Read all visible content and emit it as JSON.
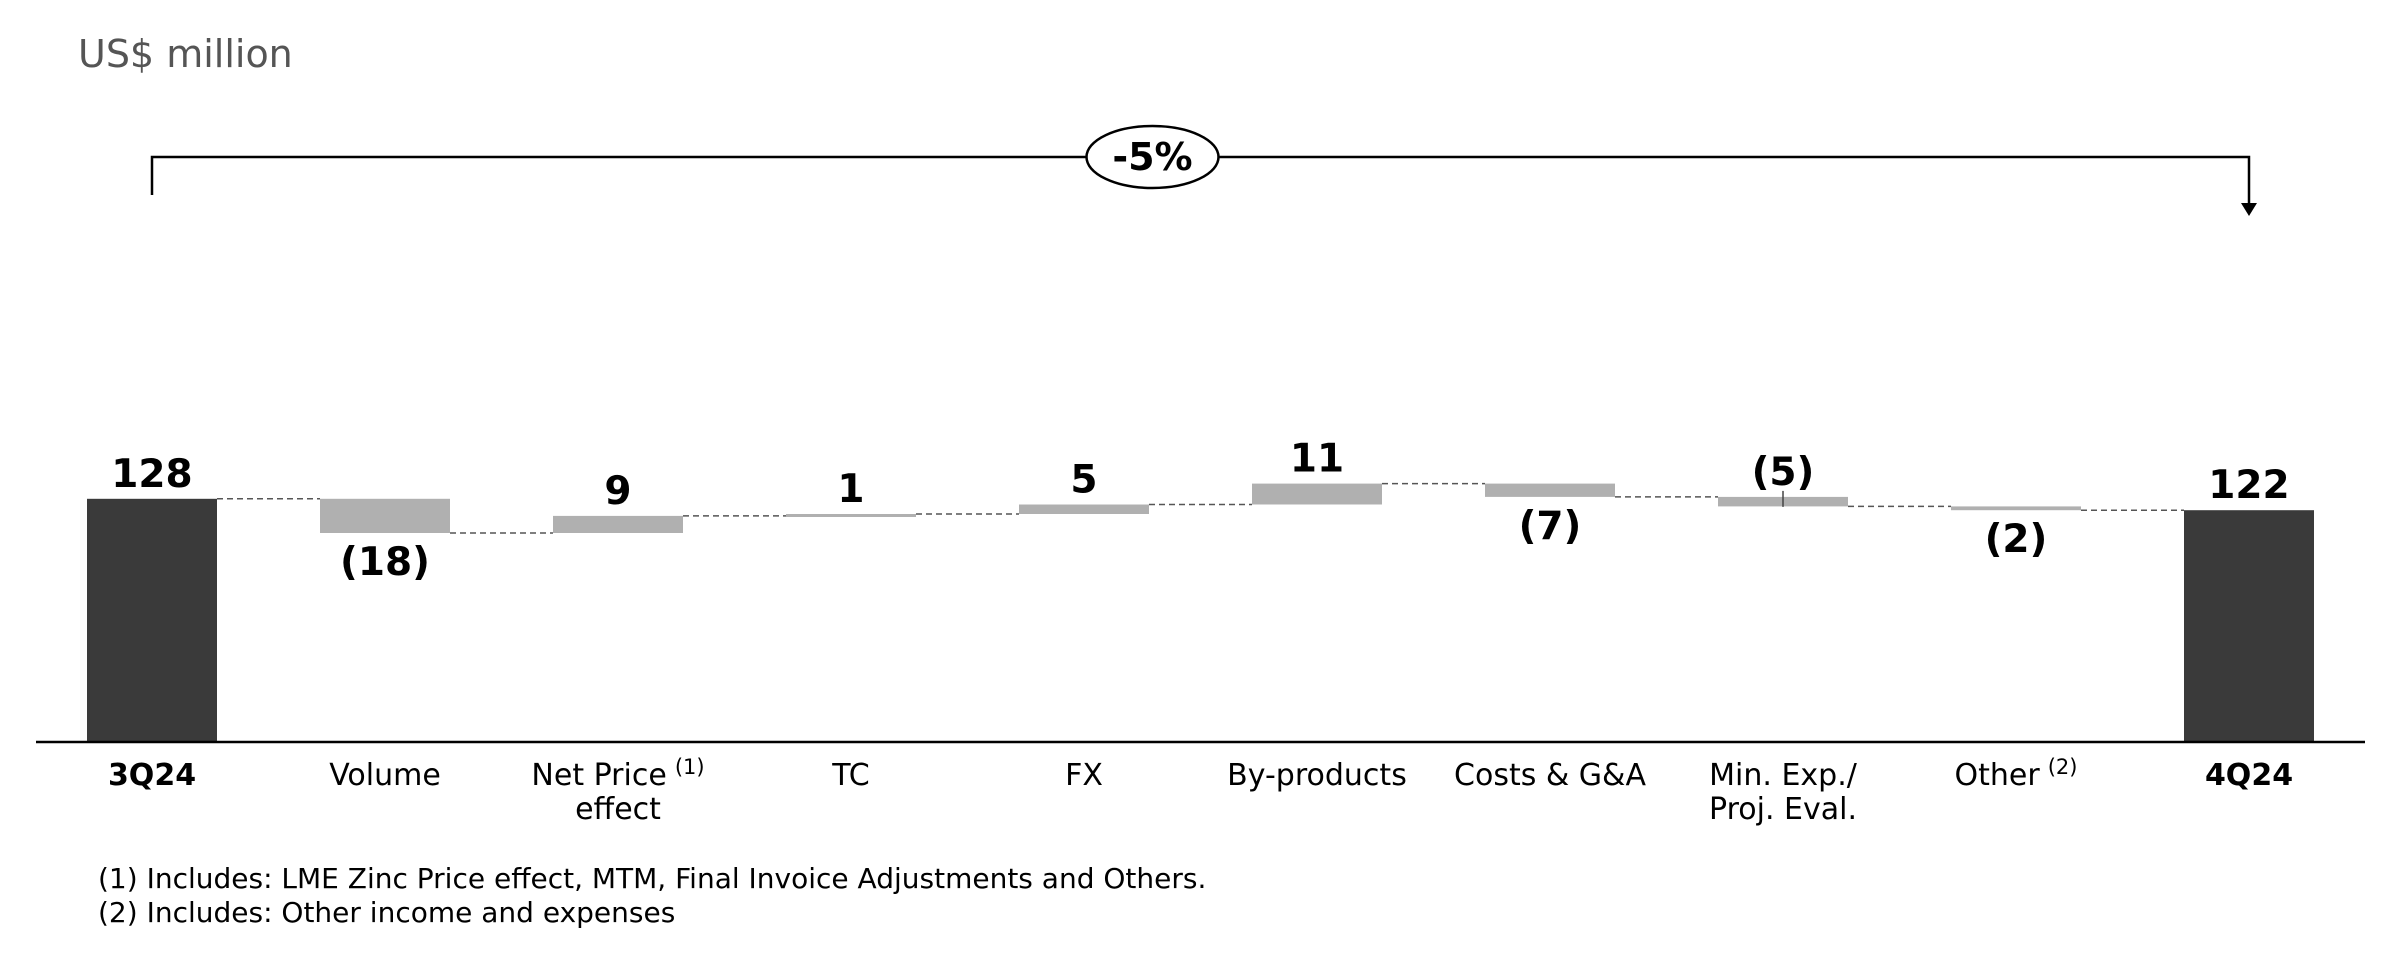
{
  "unit_label": "US$ million",
  "chart_data": {
    "type": "waterfall",
    "title": "",
    "unit": "US$ million",
    "ylim": [
      0,
      140
    ],
    "start": {
      "label": "3Q24",
      "value": 128,
      "display": "128"
    },
    "end": {
      "label": "4Q24",
      "value": 122,
      "display": "122"
    },
    "steps": [
      {
        "label": "Volume",
        "superscript": "",
        "value": -18,
        "display": "(18)"
      },
      {
        "label": "Net Price effect",
        "superscript": "(1)",
        "value": 9,
        "display": "9"
      },
      {
        "label": "TC",
        "superscript": "",
        "value": 1,
        "display": "1"
      },
      {
        "label": "FX",
        "superscript": "",
        "value": 5,
        "display": "5"
      },
      {
        "label": "By-products",
        "superscript": "",
        "value": 11,
        "display": "11"
      },
      {
        "label": "Costs & G&A",
        "superscript": "",
        "value": -7,
        "display": "(7)"
      },
      {
        "label": "Min. Exp./ Proj. Eval.",
        "superscript": "",
        "value": -5,
        "display": "(5)"
      },
      {
        "label": "Other",
        "superscript": "(2)",
        "value": -2,
        "display": "(2)"
      }
    ],
    "change_label": "-5%",
    "colors": {
      "total": "#3a3a3a",
      "step": "#b0b0b0",
      "axis": "#000000",
      "connector": "#555555"
    }
  },
  "footnotes": [
    "(1) Includes: LME Zinc Price effect, MTM, Final Invoice Adjustments and Others.",
    "(2) Includes: Other income and expenses"
  ]
}
